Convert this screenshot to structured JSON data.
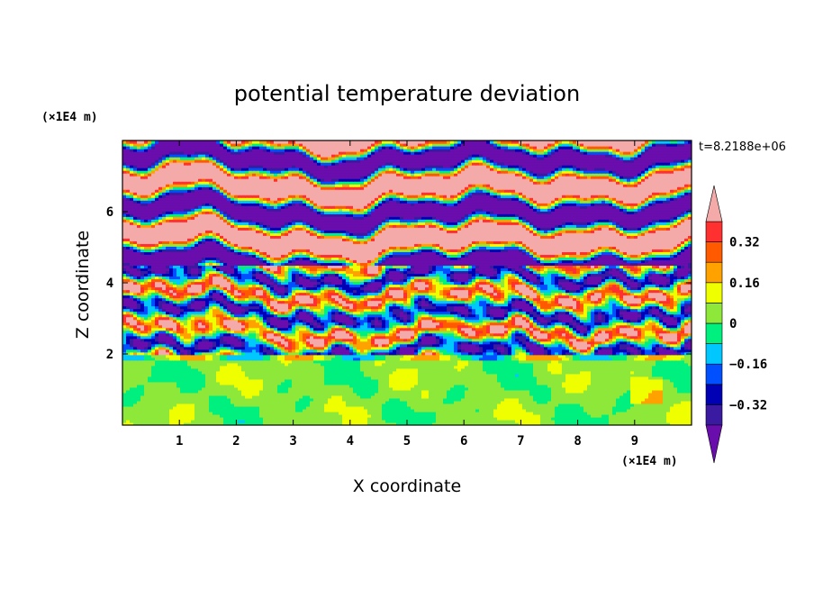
{
  "chart_data": {
    "type": "heatmap",
    "title": "potential temperature deviation",
    "xlabel": "X coordinate",
    "ylabel": "Z coordinate",
    "x_unit": "(×1E4 m)",
    "y_unit": "(×1E4 m)",
    "time_label": "t=8.2188e+06",
    "xlim": [
      0,
      10
    ],
    "ylim": [
      0,
      8
    ],
    "x_ticks": [
      1,
      2,
      3,
      4,
      5,
      6,
      7,
      8,
      9
    ],
    "y_ticks": [
      2,
      4,
      6
    ],
    "colorbar": {
      "levels": [
        -0.4,
        -0.32,
        -0.24,
        -0.16,
        -0.08,
        0,
        0.08,
        0.16,
        0.24,
        0.32,
        0.4
      ],
      "tick_labels": [
        "0.32",
        "0.16",
        "0",
        "−0.16",
        "−0.32"
      ],
      "tick_values": [
        0.32,
        0.16,
        0,
        -0.16,
        -0.32
      ],
      "colors": [
        "#6a0dad",
        "#3a1aa0",
        "#0000b4",
        "#0050ff",
        "#00c8ff",
        "#00f080",
        "#8ee83a",
        "#f0ff00",
        "#ffa200",
        "#ff5a00",
        "#ff3030",
        "#f5aaaa"
      ],
      "extend": "both"
    },
    "field_description_regions": {
      "lower_layer_z_max": 2.0,
      "lower_layer_dominant": "0 to +0.08 (green / yellow-green)",
      "upper_layer": "alternating horizontal bands of ≥0.4 and ≤−0.4 with thin transition layers"
    }
  }
}
